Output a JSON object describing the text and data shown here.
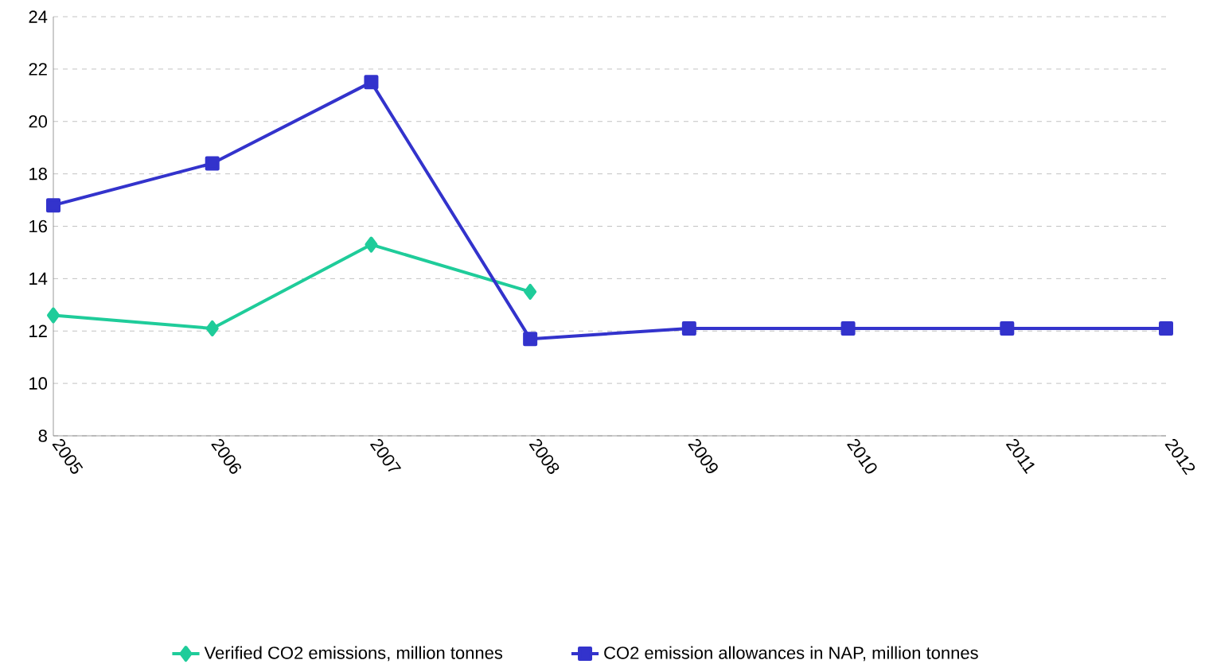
{
  "chart_data": {
    "type": "line",
    "categories": [
      "2005",
      "2006",
      "2007",
      "2008",
      "2009",
      "2010",
      "2011",
      "2012"
    ],
    "series": [
      {
        "name": "Verified CO2 emissions, million tonnes",
        "color": "#1fcc9a",
        "marker": "diamond",
        "values": [
          12.6,
          12.1,
          15.3,
          13.5,
          null,
          null,
          null,
          null
        ]
      },
      {
        "name": "CO2 emission allowances in NAP, million tonnes",
        "color": "#3333cc",
        "marker": "square",
        "values": [
          16.8,
          18.4,
          21.5,
          11.7,
          12.1,
          12.1,
          12.1,
          12.1
        ]
      }
    ],
    "ylim": [
      8,
      24
    ],
    "yticks": [
      8,
      10,
      12,
      14,
      16,
      18,
      20,
      22,
      24
    ],
    "grid": "y",
    "legend": "bottom",
    "line_style": "solid"
  }
}
